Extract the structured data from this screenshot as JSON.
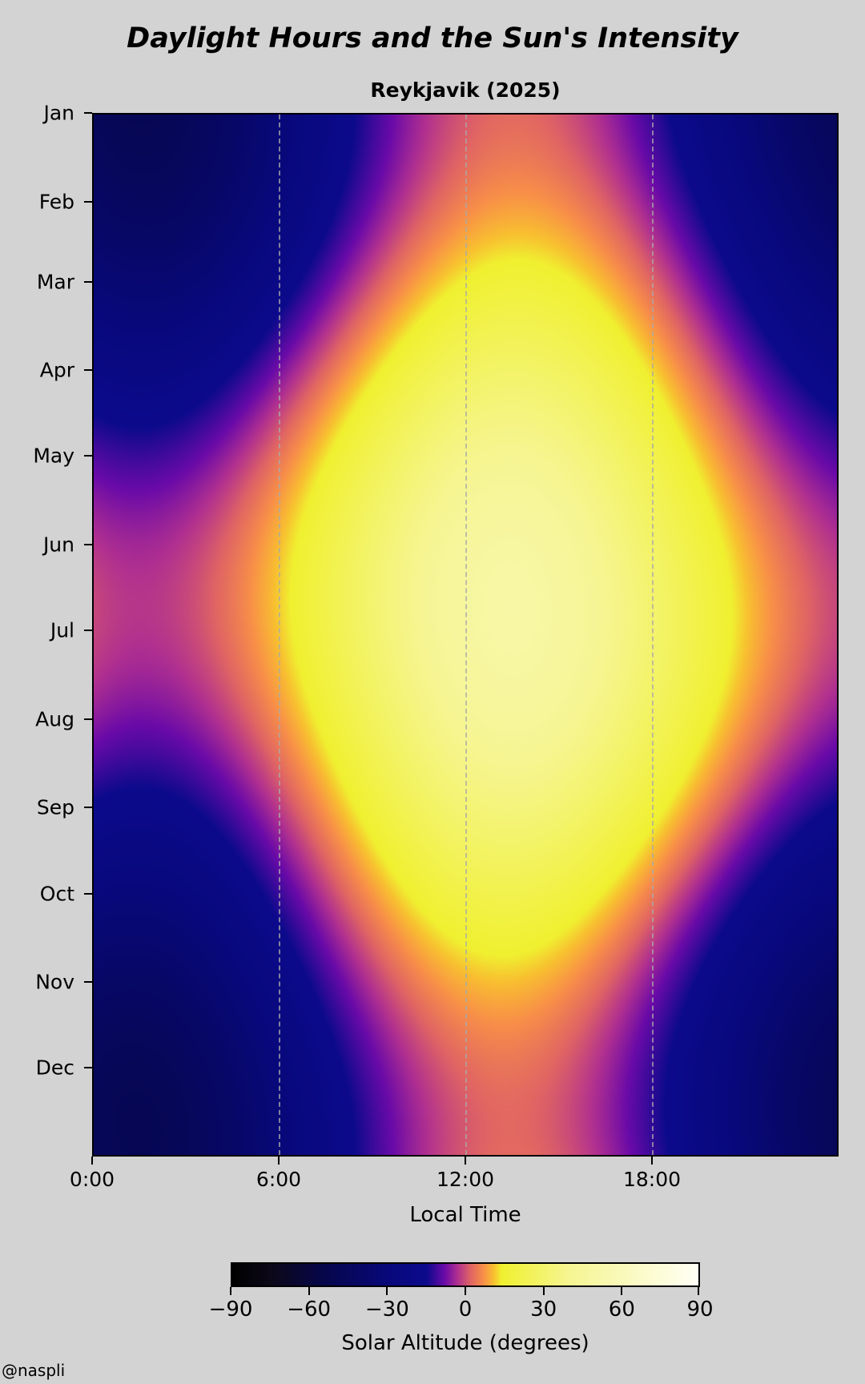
{
  "title": "Daylight Hours and the Sun's Intensity",
  "credit": "@naspli",
  "chart_data": {
    "type": "heatmap",
    "title": "Reykjavik (2025)",
    "xlabel": "Local Time",
    "ylabel": "",
    "xlim": [
      0,
      24
    ],
    "x_ticks": [
      {
        "value": 0,
        "label": "0:00"
      },
      {
        "value": 6,
        "label": "6:00"
      },
      {
        "value": 12,
        "label": "12:00"
      },
      {
        "value": 18,
        "label": "18:00"
      }
    ],
    "vertical_dashed_lines": [
      6,
      12,
      18
    ],
    "y_ticks": [
      {
        "day": 0,
        "label": "Jan"
      },
      {
        "day": 31,
        "label": "Feb"
      },
      {
        "day": 59,
        "label": "Mar"
      },
      {
        "day": 90,
        "label": "Apr"
      },
      {
        "day": 120,
        "label": "May"
      },
      {
        "day": 151,
        "label": "Jun"
      },
      {
        "day": 181,
        "label": "Jul"
      },
      {
        "day": 212,
        "label": "Aug"
      },
      {
        "day": 243,
        "label": "Sep"
      },
      {
        "day": 273,
        "label": "Oct"
      },
      {
        "day": 304,
        "label": "Nov"
      },
      {
        "day": 334,
        "label": "Dec"
      }
    ],
    "ylim_days": [
      0,
      365
    ],
    "y_inverted": true,
    "value": "Solar Altitude",
    "summary": {
      "winter_midday_max_deg": 2.5,
      "summer_midday_max_deg": 49,
      "winter_midnight_min_deg": -49,
      "solar_noon_local": "13:30"
    },
    "colorbar": {
      "label": "Solar Altitude (degrees)",
      "range": [
        -90,
        90
      ],
      "ticks": [
        {
          "value": -90,
          "label": "−90"
        },
        {
          "value": -60,
          "label": "−60"
        },
        {
          "value": -30,
          "label": "−30"
        },
        {
          "value": 0,
          "label": "0"
        },
        {
          "value": 30,
          "label": "30"
        },
        {
          "value": 60,
          "label": "60"
        },
        {
          "value": 90,
          "label": "90"
        }
      ],
      "colormap": [
        {
          "v": -90,
          "c": "#000000"
        },
        {
          "v": -75,
          "c": "#0c0818"
        },
        {
          "v": -55,
          "c": "#06064a"
        },
        {
          "v": -30,
          "c": "#08087a"
        },
        {
          "v": -15,
          "c": "#0c0a8c"
        },
        {
          "v": -8,
          "c": "#6a0aa8"
        },
        {
          "v": -3,
          "c": "#b03090"
        },
        {
          "v": 2,
          "c": "#e06464"
        },
        {
          "v": 7,
          "c": "#f89048"
        },
        {
          "v": 11,
          "c": "#f8c030"
        },
        {
          "v": 14,
          "c": "#f0f030"
        },
        {
          "v": 40,
          "c": "#f6f592"
        },
        {
          "v": 90,
          "c": "#fffff6"
        }
      ]
    }
  }
}
